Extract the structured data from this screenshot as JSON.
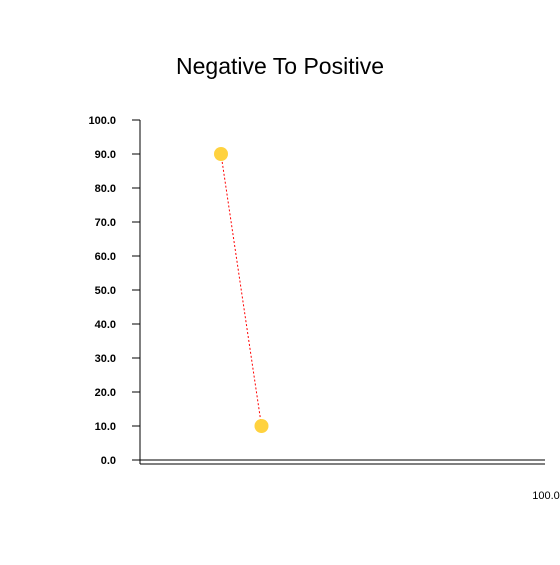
{
  "chart_data": {
    "type": "scatter",
    "title": "Negative To Positive",
    "xlabel": "",
    "ylabel": "",
    "ylim": [
      0,
      100
    ],
    "y_ticks": [
      "0.0",
      "10.0",
      "20.0",
      "30.0",
      "40.0",
      "50.0",
      "60.0",
      "70.0",
      "80.0",
      "90.0",
      "100.0"
    ],
    "x_ticks": [
      "100.0"
    ],
    "series": [
      {
        "points": [
          {
            "x": 20,
            "y": 90
          },
          {
            "x": 30,
            "y": 10
          }
        ],
        "marker_color": "#FFD23F",
        "line_color": "#FF0000",
        "line_style": "dotted"
      }
    ],
    "grid": false,
    "legend": "none"
  }
}
